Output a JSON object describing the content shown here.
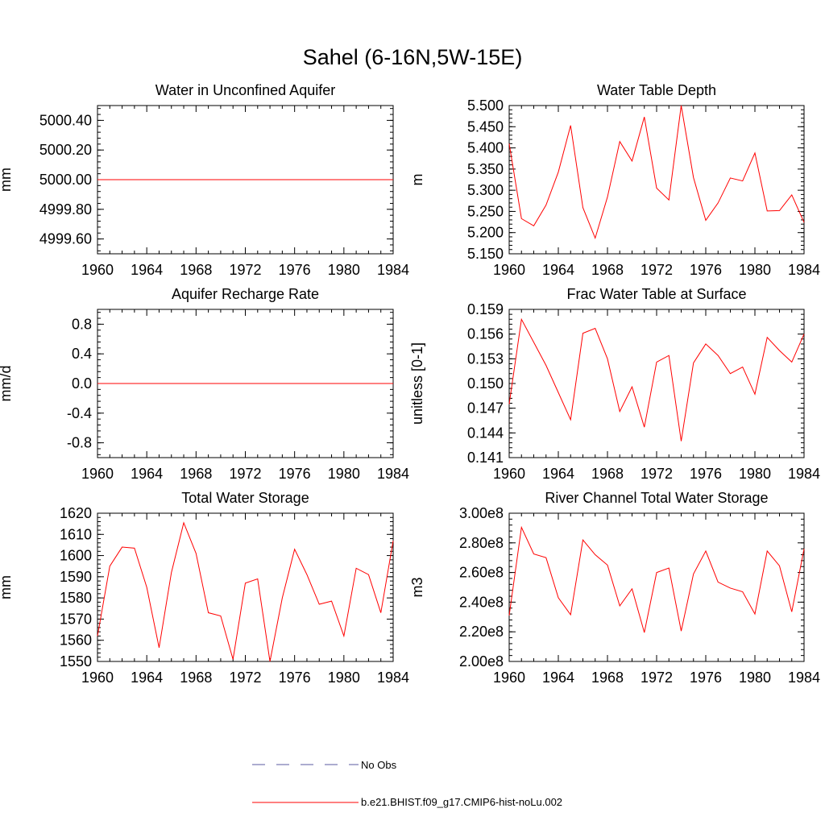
{
  "figure": {
    "title": "Sahel (6-16N,5W-15E)"
  },
  "legend": {
    "obs_label": "No Obs",
    "model_label": "b.e21.BHIST.f09_g17.CMIP6-hist-noLu.002",
    "obs_color": "#5a5aa0",
    "model_color": "#ff0000"
  },
  "chart_data": [
    {
      "type": "line",
      "title": "Water in Unconfined Aquifer",
      "ylabel": "mm",
      "xlim": [
        1960,
        1984
      ],
      "ylim": [
        4999.5,
        5000.5
      ],
      "xticks": [
        1960,
        1964,
        1968,
        1972,
        1976,
        1980,
        1984
      ],
      "yticks": [
        4999.6,
        4999.8,
        5000.0,
        5000.2,
        5000.4
      ],
      "ytick_labels": [
        "4999.60",
        "4999.80",
        "5000.00",
        "5000.20",
        "5000.40"
      ],
      "series": [
        {
          "x": [
            1960,
            1961,
            1962,
            1963,
            1964,
            1965,
            1966,
            1967,
            1968,
            1969,
            1970,
            1971,
            1972,
            1973,
            1974,
            1975,
            1976,
            1977,
            1978,
            1979,
            1980,
            1981,
            1982,
            1983,
            1984
          ],
          "values": [
            5000.0,
            5000.0,
            5000.0,
            5000.0,
            5000.0,
            5000.0,
            5000.0,
            5000.0,
            5000.0,
            5000.0,
            5000.0,
            5000.0,
            5000.0,
            5000.0,
            5000.0,
            5000.0,
            5000.0,
            5000.0,
            5000.0,
            5000.0,
            5000.0,
            5000.0,
            5000.0,
            5000.0,
            5000.0
          ]
        }
      ]
    },
    {
      "type": "line",
      "title": "Water Table Depth",
      "ylabel": "m",
      "xlim": [
        1960,
        1984
      ],
      "ylim": [
        5.15,
        5.5
      ],
      "xticks": [
        1960,
        1964,
        1968,
        1972,
        1976,
        1980,
        1984
      ],
      "yticks": [
        5.15,
        5.2,
        5.25,
        5.3,
        5.35,
        5.4,
        5.45,
        5.5
      ],
      "ytick_labels": [
        "5.150",
        "5.200",
        "5.250",
        "5.300",
        "5.350",
        "5.400",
        "5.450",
        "5.500"
      ],
      "series": [
        {
          "x": [
            1960,
            1961,
            1962,
            1963,
            1964,
            1965,
            1966,
            1967,
            1968,
            1969,
            1970,
            1971,
            1972,
            1973,
            1974,
            1975,
            1976,
            1977,
            1978,
            1979,
            1980,
            1981,
            1982,
            1983,
            1984
          ],
          "values": [
            5.41,
            5.233,
            5.216,
            5.265,
            5.343,
            5.453,
            5.259,
            5.187,
            5.284,
            5.415,
            5.369,
            5.473,
            5.305,
            5.277,
            5.5,
            5.33,
            5.229,
            5.27,
            5.329,
            5.322,
            5.388,
            5.251,
            5.252,
            5.289,
            5.224
          ]
        }
      ]
    },
    {
      "type": "line",
      "title": "Aquifer Recharge Rate",
      "ylabel": "mm/d",
      "xlim": [
        1960,
        1984
      ],
      "ylim": [
        -1.0,
        1.0
      ],
      "xticks": [
        1960,
        1964,
        1968,
        1972,
        1976,
        1980,
        1984
      ],
      "yticks": [
        -0.8,
        -0.4,
        0.0,
        0.4,
        0.8
      ],
      "ytick_labels": [
        "-0.8",
        "-0.4",
        "0.0",
        "0.4",
        "0.8"
      ],
      "series": [
        {
          "x": [
            1960,
            1961,
            1962,
            1963,
            1964,
            1965,
            1966,
            1967,
            1968,
            1969,
            1970,
            1971,
            1972,
            1973,
            1974,
            1975,
            1976,
            1977,
            1978,
            1979,
            1980,
            1981,
            1982,
            1983,
            1984
          ],
          "values": [
            0,
            0,
            0,
            0,
            0,
            0,
            0,
            0,
            0,
            0,
            0,
            0,
            0,
            0,
            0,
            0,
            0,
            0,
            0,
            0,
            0,
            0,
            0,
            0,
            0
          ]
        }
      ]
    },
    {
      "type": "line",
      "title": "Frac Water Table at Surface",
      "ylabel": "unitless [0-1]",
      "xlim": [
        1960,
        1984
      ],
      "ylim": [
        0.141,
        0.159
      ],
      "xticks": [
        1960,
        1964,
        1968,
        1972,
        1976,
        1980,
        1984
      ],
      "yticks": [
        0.141,
        0.144,
        0.147,
        0.15,
        0.153,
        0.156,
        0.159
      ],
      "ytick_labels": [
        "0.141",
        "0.144",
        "0.147",
        "0.150",
        "0.153",
        "0.156",
        "0.159"
      ],
      "series": [
        {
          "x": [
            1960,
            1961,
            1962,
            1963,
            1964,
            1965,
            1966,
            1967,
            1968,
            1969,
            1970,
            1971,
            1972,
            1973,
            1974,
            1975,
            1976,
            1977,
            1978,
            1979,
            1980,
            1981,
            1982,
            1983,
            1984
          ],
          "values": [
            0.1475,
            0.1578,
            0.155,
            0.1522,
            0.1489,
            0.1456,
            0.1561,
            0.1567,
            0.153,
            0.1466,
            0.1496,
            0.1447,
            0.1526,
            0.1534,
            0.143,
            0.1525,
            0.1548,
            0.1534,
            0.1512,
            0.152,
            0.1487,
            0.1556,
            0.154,
            0.1526,
            0.156
          ]
        }
      ]
    },
    {
      "type": "line",
      "title": "Total Water Storage",
      "ylabel": "mm",
      "xlim": [
        1960,
        1984
      ],
      "ylim": [
        1550,
        1620
      ],
      "xticks": [
        1960,
        1964,
        1968,
        1972,
        1976,
        1980,
        1984
      ],
      "yticks": [
        1550,
        1560,
        1570,
        1580,
        1590,
        1600,
        1610,
        1620
      ],
      "ytick_labels": [
        "1550",
        "1560",
        "1570",
        "1580",
        "1590",
        "1600",
        "1610",
        "1620"
      ],
      "series": [
        {
          "x": [
            1960,
            1961,
            1962,
            1963,
            1964,
            1965,
            1966,
            1967,
            1968,
            1969,
            1970,
            1971,
            1972,
            1973,
            1974,
            1975,
            1976,
            1977,
            1978,
            1979,
            1980,
            1981,
            1982,
            1983,
            1984
          ],
          "values": [
            1562,
            1595,
            1604,
            1603.5,
            1585,
            1556.5,
            1592,
            1615.5,
            1601,
            1573,
            1571.5,
            1551,
            1587,
            1589,
            1550,
            1580,
            1603,
            1591,
            1577,
            1578.5,
            1562,
            1594,
            1591,
            1573,
            1607
          ]
        }
      ]
    },
    {
      "type": "line",
      "title": "River Channel Total Water Storage",
      "ylabel": "m3",
      "xlim": [
        1960,
        1984
      ],
      "ylim": [
        200000000,
        300000000
      ],
      "xticks": [
        1960,
        1964,
        1968,
        1972,
        1976,
        1980,
        1984
      ],
      "yticks": [
        200000000,
        220000000,
        240000000,
        260000000,
        280000000,
        300000000
      ],
      "ytick_labels": [
        "2.00e8",
        "2.20e8",
        "2.40e8",
        "2.60e8",
        "2.80e8",
        "3.00e8"
      ],
      "series": [
        {
          "x": [
            1960,
            1961,
            1962,
            1963,
            1964,
            1965,
            1966,
            1967,
            1968,
            1969,
            1970,
            1971,
            1972,
            1973,
            1974,
            1975,
            1976,
            1977,
            1978,
            1979,
            1980,
            1981,
            1982,
            1983,
            1984
          ],
          "values": [
            231000000,
            290500000,
            272500000,
            270000000,
            243000000,
            231500000,
            282000000,
            272000000,
            265000000,
            237500000,
            249000000,
            219500000,
            260000000,
            263000000,
            220500000,
            259000000,
            274500000,
            253500000,
            249500000,
            247000000,
            232000000,
            274500000,
            264500000,
            233500000,
            276000000
          ]
        }
      ]
    }
  ]
}
